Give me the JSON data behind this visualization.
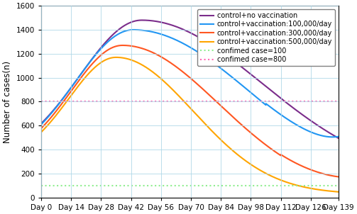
{
  "ylabel": "Number of cases(n)",
  "ylim": [
    0,
    1600
  ],
  "xlim": [
    0,
    139
  ],
  "yticks": [
    0,
    200,
    400,
    600,
    800,
    1000,
    1200,
    1400,
    1600
  ],
  "xtick_days": [
    0,
    14,
    28,
    42,
    56,
    70,
    84,
    98,
    112,
    126,
    139
  ],
  "lines": [
    {
      "label": "control+no vaccination",
      "color": "#7B2D8B",
      "linewidth": 1.5
    },
    {
      "label": "control+vaccination:100,000/day",
      "color": "#2196F3",
      "linewidth": 1.5
    },
    {
      "label": "control+vaccination:300,000/day",
      "color": "#FF5722",
      "linewidth": 1.5
    },
    {
      "label": "control+vaccination:500,000/day",
      "color": "#FFA500",
      "linewidth": 1.5
    }
  ],
  "hlines": [
    {
      "y": 100,
      "color": "#90EE90",
      "linestyle": "dotted",
      "linewidth": 1.5,
      "label": "confimed case=100"
    },
    {
      "y": 800,
      "color": "#FF69B4",
      "linestyle": "dotted",
      "linewidth": 1.5,
      "label": "confimed case=800"
    }
  ],
  "bg_color": "#ffffff",
  "grid_color": "#b0d8e8",
  "legend_fontsize": 7.0,
  "ylabel_fontsize": 8.5,
  "tick_fontsize": 7.5
}
